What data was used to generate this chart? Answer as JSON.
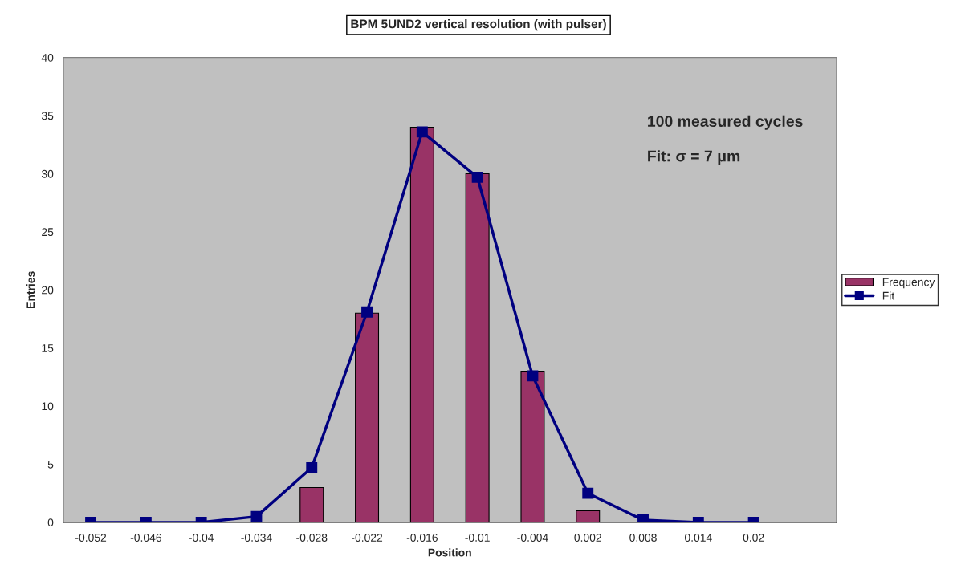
{
  "chart_data": {
    "type": "bar",
    "title": "BPM 5UND2 vertical resolution (with pulser)",
    "xlabel": "Position",
    "ylabel": "Entries",
    "categories": [
      "-0.052",
      "-0.046",
      "-0.04",
      "-0.034",
      "-0.028",
      "-0.022",
      "-0.016",
      "-0.01",
      "-0.004",
      "0.002",
      "0.008",
      "0.014",
      "0.02",
      null
    ],
    "series": [
      {
        "name": "Frequency",
        "color": "#993366",
        "values": [
          0,
          0,
          0,
          0,
          3,
          18,
          34,
          30,
          13,
          1,
          0,
          0,
          0,
          0
        ]
      },
      {
        "name": "Fit",
        "type": "line",
        "color": "#000080",
        "marker": "square",
        "line_style": "solid",
        "values": [
          0,
          0,
          0,
          0.5,
          4.7,
          18.1,
          33.6,
          29.7,
          12.6,
          2.5,
          0.2,
          0,
          0,
          null
        ]
      }
    ],
    "ylim": [
      0,
      40
    ],
    "yticks": [
      0,
      5,
      10,
      15,
      20,
      25,
      30,
      35,
      40
    ],
    "annotations": [
      "100 measured cycles",
      "Fit: σ = 7 μm"
    ],
    "legend": "right",
    "grid": false
  }
}
